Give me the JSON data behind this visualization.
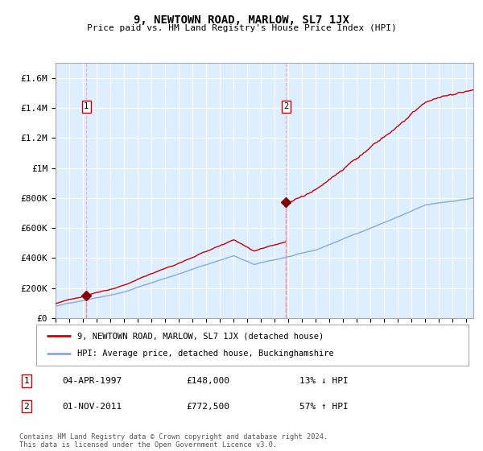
{
  "title": "9, NEWTOWN ROAD, MARLOW, SL7 1JX",
  "subtitle": "Price paid vs. HM Land Registry's House Price Index (HPI)",
  "ylabel_ticks": [
    "£0",
    "£200K",
    "£400K",
    "£600K",
    "£800K",
    "£1M",
    "£1.2M",
    "£1.4M",
    "£1.6M"
  ],
  "ytick_values": [
    0,
    200000,
    400000,
    600000,
    800000,
    1000000,
    1200000,
    1400000,
    1600000
  ],
  "ylim": [
    0,
    1700000
  ],
  "xlim_start": 1995.0,
  "xlim_end": 2025.5,
  "sale1": {
    "year": 1997.25,
    "price": 148000,
    "label": "1"
  },
  "sale2": {
    "year": 2011.83,
    "price": 772500,
    "label": "2"
  },
  "legend_line1": "9, NEWTOWN ROAD, MARLOW, SL7 1JX (detached house)",
  "legend_line2": "HPI: Average price, detached house, Buckinghamshire",
  "table_row1": [
    "1",
    "04-APR-1997",
    "£148,000",
    "13% ↓ HPI"
  ],
  "table_row2": [
    "2",
    "01-NOV-2011",
    "£772,500",
    "57% ↑ HPI"
  ],
  "footer": "Contains HM Land Registry data © Crown copyright and database right 2024.\nThis data is licensed under the Open Government Licence v3.0.",
  "line_color_red": "#cc0000",
  "line_color_blue": "#88aadd",
  "plot_bg": "#ddeeff",
  "grid_color": "#ffffff",
  "sale_marker_color": "#880000"
}
